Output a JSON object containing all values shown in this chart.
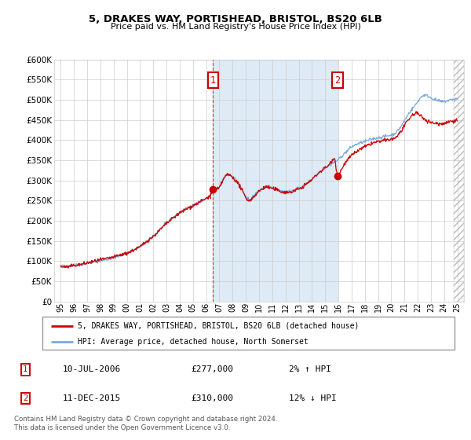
{
  "title": "5, DRAKES WAY, PORTISHEAD, BRISTOL, BS20 6LB",
  "subtitle": "Price paid vs. HM Land Registry's House Price Index (HPI)",
  "legend_line1": "5, DRAKES WAY, PORTISHEAD, BRISTOL, BS20 6LB (detached house)",
  "legend_line2": "HPI: Average price, detached house, North Somerset",
  "annotation1_label": "1",
  "annotation1_date": "10-JUL-2006",
  "annotation1_price": "£277,000",
  "annotation1_hpi": "2% ↑ HPI",
  "annotation2_label": "2",
  "annotation2_date": "11-DEC-2015",
  "annotation2_price": "£310,000",
  "annotation2_hpi": "12% ↓ HPI",
  "footer": "Contains HM Land Registry data © Crown copyright and database right 2024.\nThis data is licensed under the Open Government Licence v3.0.",
  "red_color": "#cc0000",
  "blue_color": "#7aaadd",
  "blue_fill_color": "#deeaf5",
  "background_color": "#ffffff",
  "grid_color": "#cccccc",
  "sale1_x": 2006.52,
  "sale1_y": 277000,
  "sale2_x": 2015.94,
  "sale2_y": 310000,
  "ylim": [
    0,
    600000
  ],
  "xlim_start": 1994.5,
  "xlim_end": 2025.5
}
